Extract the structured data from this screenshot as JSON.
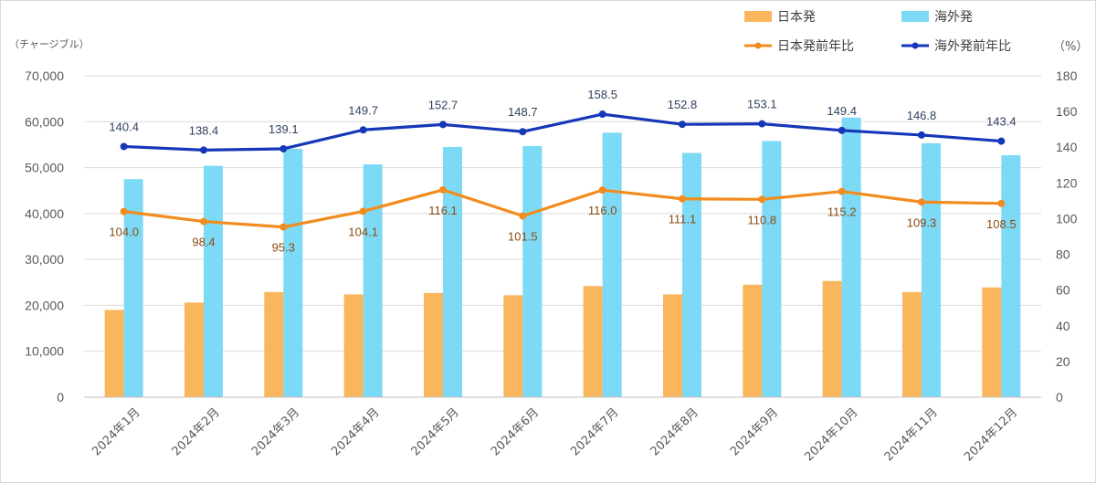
{
  "chart_data": {
    "type": "bar",
    "categories": [
      "2024年1月",
      "2024年2月",
      "2024年3月",
      "2024年4月",
      "2024年5月",
      "2024年6月",
      "2024年7月",
      "2024年8月",
      "2024年9月",
      "2024年10月",
      "2024年11月",
      "2024年12月"
    ],
    "y_left_unit": "（チャージブル）",
    "y_right_unit": "（%）",
    "y_left_ticks": [
      "0",
      "10,000",
      "20,000",
      "30,000",
      "40,000",
      "50,000",
      "60,000",
      "70,000"
    ],
    "y_right_ticks": [
      "0",
      "20",
      "40",
      "60",
      "80",
      "100",
      "120",
      "140",
      "160",
      "180"
    ],
    "ylim_left": [
      0,
      70000
    ],
    "ylim_right": [
      0,
      180
    ],
    "grid": "horizontal",
    "legend_position": "top-right",
    "series": [
      {
        "name": "日本発",
        "type": "bar",
        "axis": "left",
        "color": "#f9b65c",
        "values": [
          19000,
          20600,
          22900,
          22400,
          22700,
          22200,
          24200,
          22400,
          24500,
          25300,
          22900,
          23900
        ]
      },
      {
        "name": "海外発",
        "type": "bar",
        "axis": "left",
        "color": "#7ddaf7",
        "values": [
          47500,
          50400,
          54100,
          50700,
          54500,
          54700,
          57600,
          53200,
          55800,
          60900,
          55300,
          52700
        ]
      },
      {
        "name": "日本発前年比",
        "type": "line",
        "axis": "right",
        "color": "#f28c1e",
        "values": [
          104.0,
          98.4,
          95.3,
          104.1,
          116.1,
          101.5,
          116.0,
          111.1,
          110.8,
          115.2,
          109.3,
          108.5
        ],
        "labels": [
          "104.0",
          "98.4",
          "95.3",
          "104.1",
          "116.1",
          "101.5",
          "116.0",
          "111.1",
          "110.8",
          "115.2",
          "109.3",
          "108.5"
        ]
      },
      {
        "name": "海外発前年比",
        "type": "line",
        "axis": "right",
        "color": "#1537b8",
        "values": [
          140.4,
          138.4,
          139.1,
          149.7,
          152.7,
          148.7,
          158.5,
          152.8,
          153.1,
          149.4,
          146.8,
          143.4
        ],
        "labels": [
          "140.4",
          "138.4",
          "139.1",
          "149.7",
          "152.7",
          "148.7",
          "158.5",
          "152.8",
          "153.1",
          "149.4",
          "146.8",
          "143.4"
        ]
      }
    ]
  }
}
